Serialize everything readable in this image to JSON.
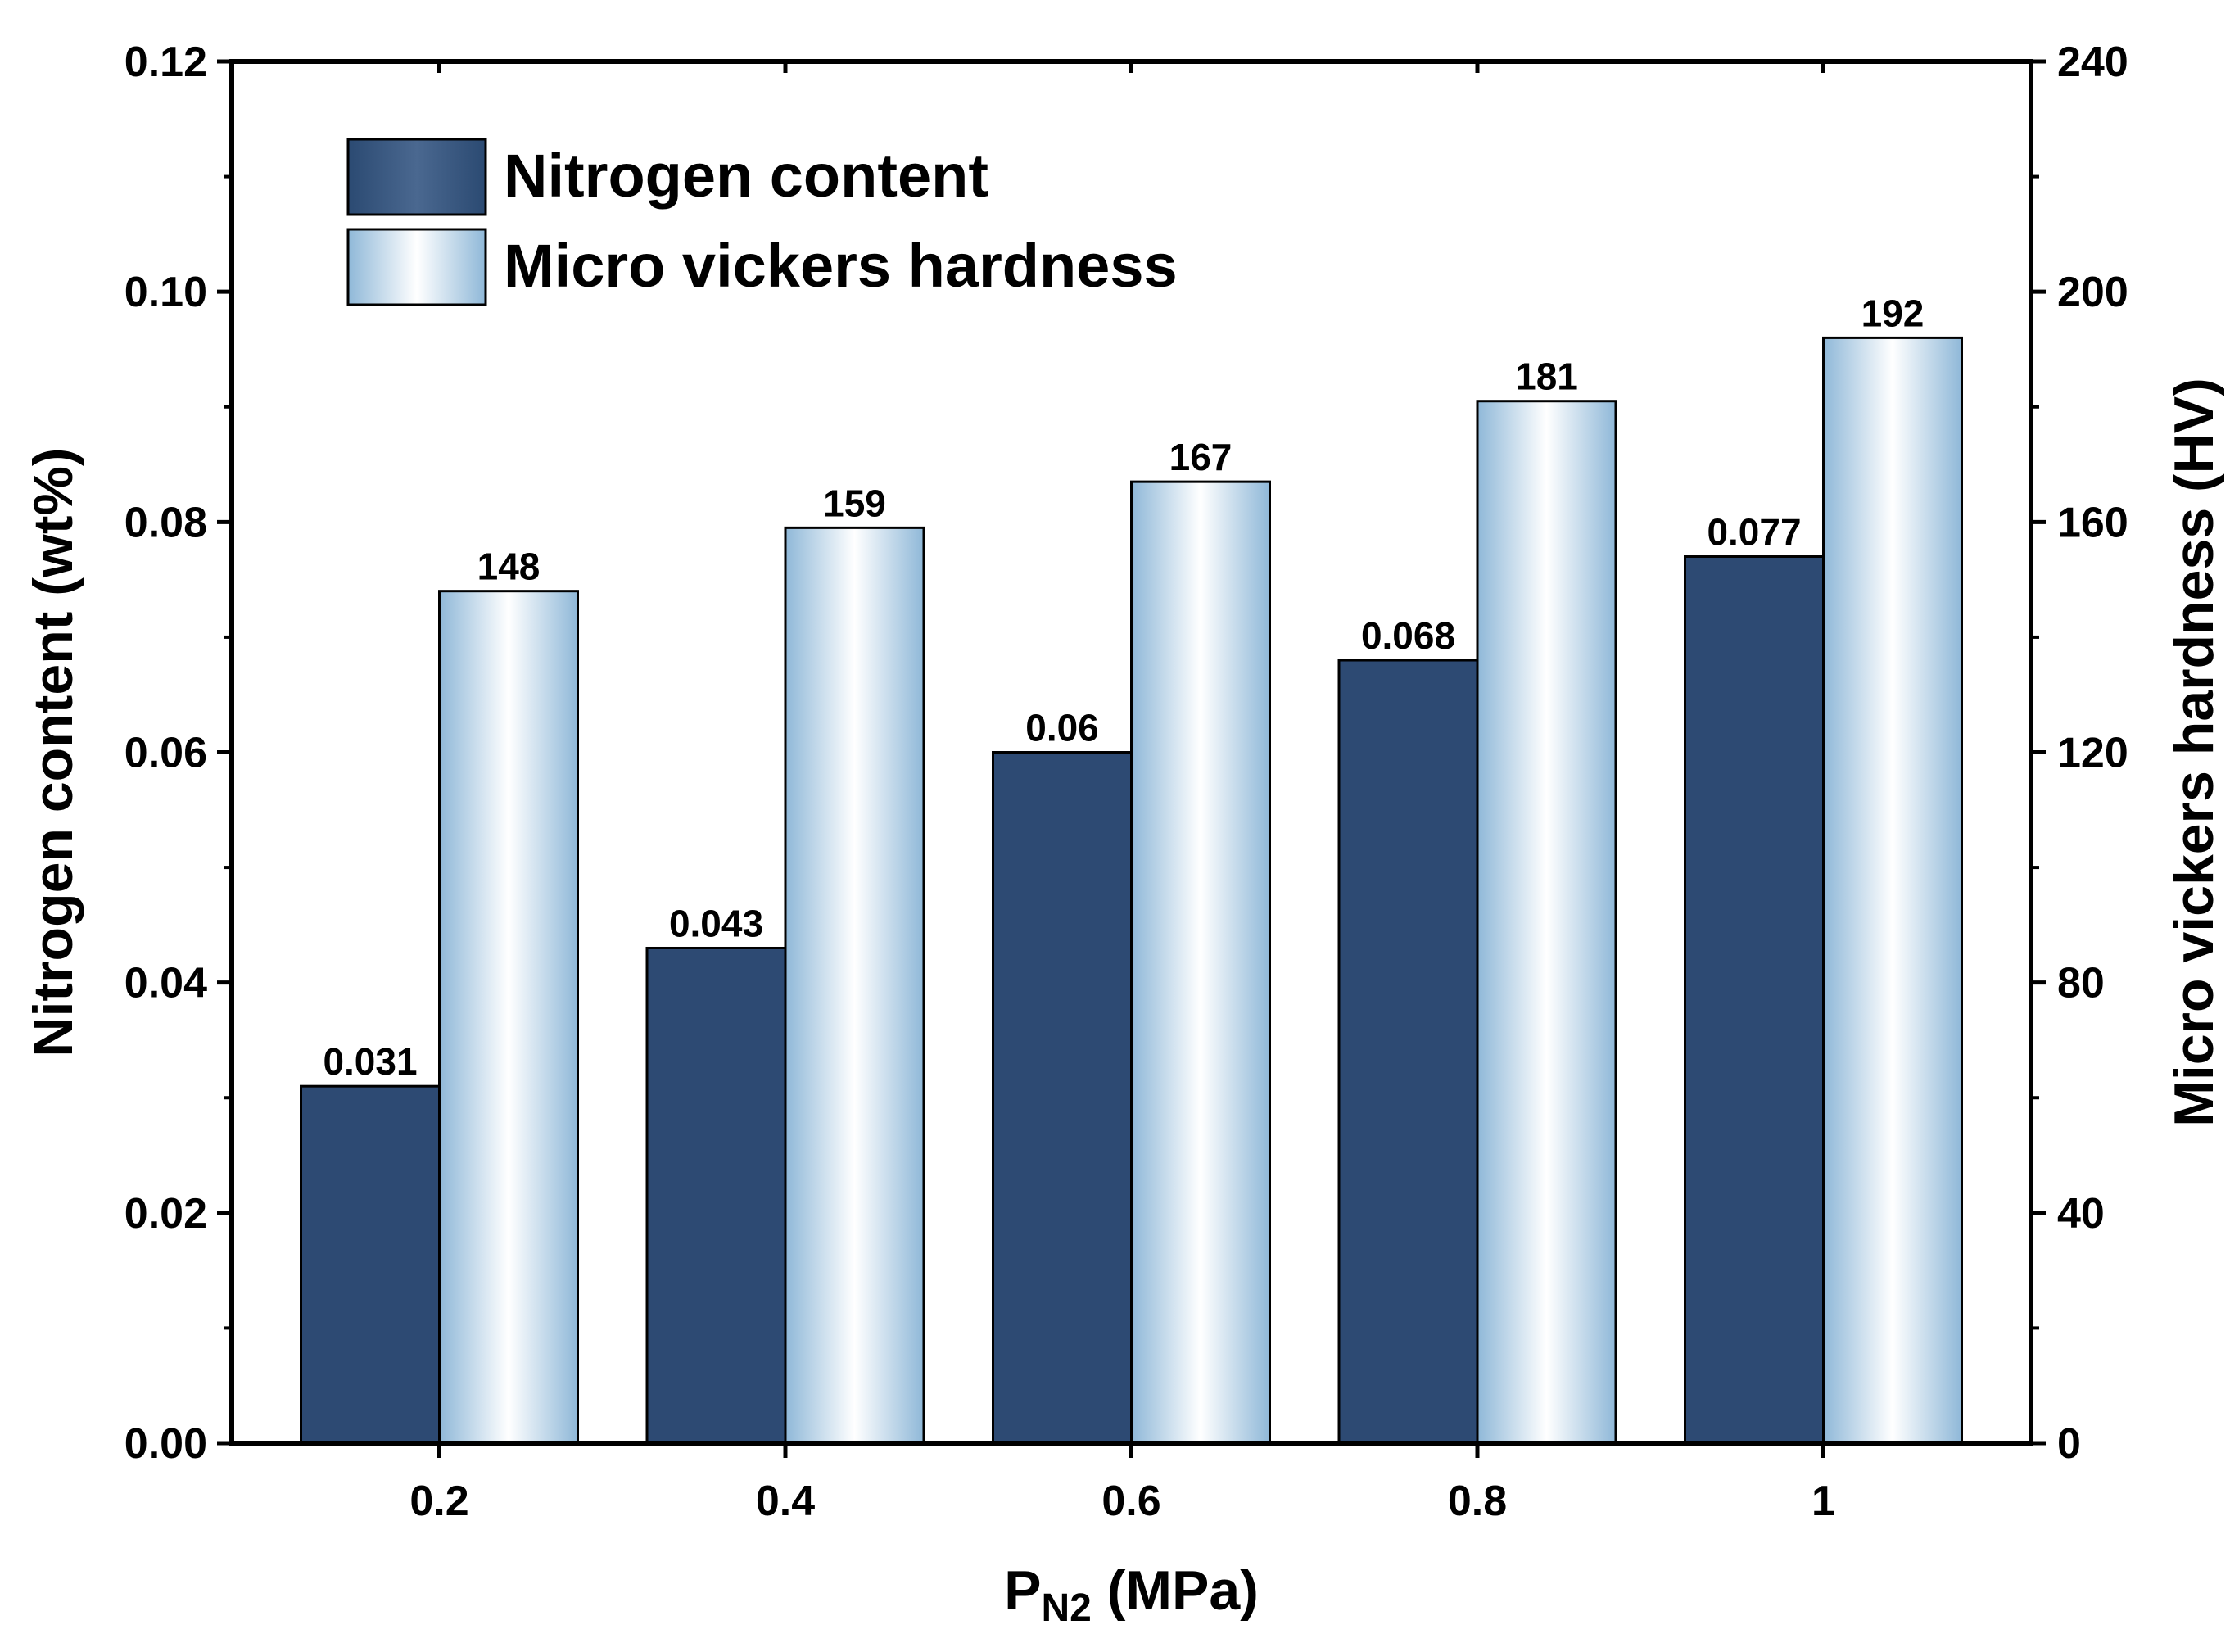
{
  "chart_data": {
    "type": "bar",
    "categories": [
      "0.2",
      "0.4",
      "0.6",
      "0.8",
      "1"
    ],
    "xlabel": {
      "main": "P",
      "sub": "N2",
      "suffix": " (MPa)"
    },
    "ylabel_left": "Nitrogen content (wt%)",
    "ylabel_right": "Micro vickers hardness (HV)",
    "ylim_left": [
      0,
      0.12
    ],
    "ylim_right": [
      0,
      240
    ],
    "yticks_left": [
      "0.00",
      "0.02",
      "0.04",
      "0.06",
      "0.08",
      "0.10",
      "0.12"
    ],
    "yticks_right": [
      "0",
      "40",
      "80",
      "120",
      "160",
      "200",
      "240"
    ],
    "series": [
      {
        "name": "Nitrogen content",
        "axis": "left",
        "values": [
          0.031,
          0.043,
          0.06,
          0.068,
          0.077
        ],
        "labels": [
          "0.031",
          "0.043",
          "0.06",
          "0.068",
          "0.077"
        ],
        "color": "#2d4a73"
      },
      {
        "name": "Micro vickers hardness",
        "axis": "right",
        "values": [
          148,
          159,
          167,
          181,
          192
        ],
        "labels": [
          "148",
          "159",
          "167",
          "181",
          "192"
        ],
        "color": "#a9cbe3"
      }
    ],
    "legend_position": "top-left",
    "grid": false
  }
}
